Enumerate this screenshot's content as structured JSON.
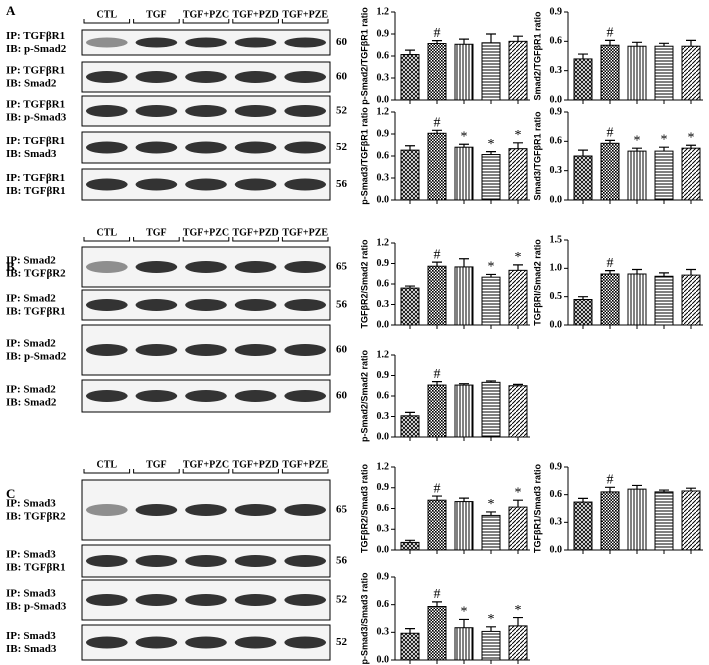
{
  "blots": [
    {
      "label": "A",
      "lanes": [
        "CTL",
        "TGF",
        "TGF+PZC",
        "TGF+PZD",
        "TGF+PZE"
      ],
      "rows": [
        {
          "ip": "IP: TGFβR1",
          "ib": "IB: p-Smad2",
          "mw": 60
        },
        {
          "ip": "IP: TGFβR1",
          "ib": "IB: Smad2",
          "mw": 60
        },
        {
          "ip": "IP: TGFβR1",
          "ib": "IB: p-Smad3",
          "mw": 52
        },
        {
          "ip": "IP: TGFβR1",
          "ib": "IB: Smad3",
          "mw": 52
        },
        {
          "ip": "IP: TGFβR1",
          "ib": "IB: TGFβR1",
          "mw": 56
        }
      ]
    },
    {
      "label": "B",
      "lanes": [
        "CTL",
        "TGF",
        "TGF+PZC",
        "TGF+PZD",
        "TGF+PZE"
      ],
      "rows": [
        {
          "ip": "IP: Smad2",
          "ib": "IB: TGFβR2",
          "mw": 65
        },
        {
          "ip": "IP: Smad2",
          "ib": "IB: TGFβR1",
          "mw": 56
        },
        {
          "ip": "IP: Smad2",
          "ib": "IB: p-Smad2",
          "mw": 60
        },
        {
          "ip": "IP: Smad2",
          "ib": "IB: Smad2",
          "mw": 60
        }
      ]
    },
    {
      "label": "C",
      "lanes": [
        "CTL",
        "TGF",
        "TGF+PZC",
        "TGF+PZD",
        "TGF+PZE"
      ],
      "rows": [
        {
          "ip": "IP: Smad3",
          "ib": "IB: TGFβR2",
          "mw": 65
        },
        {
          "ip": "IP: Smad3",
          "ib": "IB: TGFβR1",
          "mw": 56
        },
        {
          "ip": "IP: Smad3",
          "ib": "IB: p-Smad3",
          "mw": 52
        },
        {
          "ip": "IP: Smad3",
          "ib": "IB: Smad3",
          "mw": 52
        }
      ]
    }
  ],
  "chart_data": [
    {
      "type": "bar",
      "y_label": "p-Smad2/TGFβR1 ratio",
      "values": [
        0.62,
        0.77,
        0.76,
        0.78,
        0.8
      ],
      "errors": [
        0.06,
        0.04,
        0.07,
        0.12,
        0.07
      ],
      "markers": [
        null,
        "#",
        null,
        null,
        null
      ],
      "ylim": [
        0,
        1.2
      ],
      "yticks": [
        {
          "value": 0,
          "label": "0.0"
        },
        0.3,
        0.6,
        0.9,
        1.2
      ]
    },
    {
      "type": "bar",
      "y_label": "Smad2/TGFβR1 ratio",
      "values": [
        0.42,
        0.56,
        0.55,
        0.55,
        0.55
      ],
      "errors": [
        0.05,
        0.05,
        0.04,
        0.03,
        0.06
      ],
      "markers": [
        null,
        "#",
        null,
        null,
        null
      ],
      "ylim": [
        0,
        0.9
      ],
      "yticks": [
        {
          "value": 0,
          "label": "0.0"
        },
        0.3,
        0.6,
        0.9
      ]
    },
    {
      "type": "bar",
      "y_label": "p-Smad3/TGFβR1 ratio",
      "values": [
        0.68,
        0.91,
        0.72,
        0.62,
        0.7
      ],
      "errors": [
        0.06,
        0.04,
        0.04,
        0.04,
        0.08
      ],
      "markers": [
        null,
        "#",
        "*",
        "*",
        "*"
      ],
      "ylim": [
        0,
        1.2
      ],
      "yticks": [
        {
          "value": 0,
          "label": "0.0"
        },
        0.3,
        0.6,
        0.9,
        1.2
      ]
    },
    {
      "type": "bar",
      "y_label": "Smad3/TGFβR1 ratio",
      "values": [
        0.45,
        0.58,
        0.5,
        0.5,
        0.53
      ],
      "errors": [
        0.06,
        0.03,
        0.03,
        0.04,
        0.03
      ],
      "markers": [
        null,
        "#",
        "*",
        "*",
        "*"
      ],
      "ylim": [
        0,
        0.9
      ],
      "yticks": [
        {
          "value": 0,
          "label": "0.0"
        },
        0.3,
        0.6,
        0.9
      ]
    },
    {
      "type": "bar",
      "y_label": "TGFβR2/Smad2 ratio",
      "values": [
        0.54,
        0.86,
        0.85,
        0.7,
        0.8
      ],
      "errors": [
        0.03,
        0.06,
        0.12,
        0.04,
        0.08
      ],
      "markers": [
        null,
        "#",
        null,
        "*",
        "*"
      ],
      "ylim": [
        0,
        1.2
      ],
      "yticks": [
        {
          "value": 0,
          "label": "0.0"
        },
        0.3,
        0.6,
        0.9,
        1.2
      ]
    },
    {
      "type": "bar",
      "y_label": "TGFβRI/Smad2 ratio",
      "values": [
        0.45,
        0.9,
        0.9,
        0.86,
        0.88
      ],
      "errors": [
        0.05,
        0.06,
        0.08,
        0.06,
        0.1
      ],
      "markers": [
        null,
        "#",
        null,
        null,
        null
      ],
      "ylim": [
        0,
        1.5
      ],
      "yticks": [
        {
          "value": 0,
          "label": "0.0"
        },
        0.5,
        {
          "value": 1,
          "label": "1.0"
        },
        1.5
      ]
    },
    {
      "type": "bar",
      "y_label": "p-Smad2/Smad2 ratio",
      "values": [
        0.31,
        0.76,
        0.76,
        0.8,
        0.75
      ],
      "errors": [
        0.05,
        0.05,
        0.02,
        0.02,
        0.02
      ],
      "markers": [
        null,
        "#",
        null,
        null,
        null
      ],
      "ylim": [
        0,
        1.2
      ],
      "yticks": [
        {
          "value": 0,
          "label": "0.0"
        },
        0.3,
        0.6,
        0.9,
        1.2
      ]
    },
    {
      "type": "bar",
      "y_label": "TGFβR2/Smad3 ratio",
      "values": [
        0.11,
        0.72,
        0.7,
        0.5,
        0.62
      ],
      "errors": [
        0.03,
        0.06,
        0.05,
        0.05,
        0.1
      ],
      "markers": [
        null,
        "#",
        null,
        "*",
        "*"
      ],
      "ylim": [
        0,
        1.2
      ],
      "yticks": [
        {
          "value": 0,
          "label": "0.0"
        },
        0.3,
        0.6,
        0.9,
        1.2
      ]
    },
    {
      "type": "bar",
      "y_label": "TGFβR1/Smad3 ratio",
      "values": [
        0.52,
        0.63,
        0.66,
        0.63,
        0.64
      ],
      "errors": [
        0.04,
        0.05,
        0.04,
        0.02,
        0.03
      ],
      "markers": [
        null,
        "#",
        null,
        null,
        null
      ],
      "ylim": [
        0,
        0.9
      ],
      "yticks": [
        {
          "value": 0,
          "label": "0.0"
        },
        0.3,
        0.6,
        0.9
      ]
    },
    {
      "type": "bar",
      "y_label": "p-Smad3/Smad3 ratio",
      "values": [
        0.29,
        0.58,
        0.35,
        0.31,
        0.37
      ],
      "errors": [
        0.05,
        0.05,
        0.09,
        0.05,
        0.09
      ],
      "markers": [
        null,
        "#",
        "*",
        "*",
        "*"
      ],
      "ylim": [
        0,
        0.9
      ],
      "yticks": [
        {
          "value": 0,
          "label": "0.0"
        },
        0.3,
        0.6,
        0.9
      ]
    }
  ]
}
